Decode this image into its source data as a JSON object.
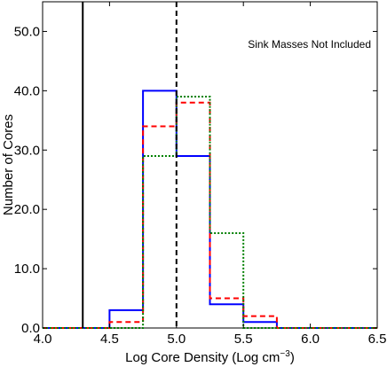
{
  "chart_data": {
    "type": "histogram",
    "title": "",
    "xlabel": "Log Core Density (Log cm",
    "xlabel_sup": "−3",
    "xlabel_close": ")",
    "ylabel": "Number of Cores",
    "xlim": [
      4.0,
      6.5
    ],
    "ylim": [
      0,
      55
    ],
    "x_ticks": [
      4.0,
      4.5,
      5.0,
      5.5,
      6.0,
      6.5
    ],
    "x_tick_labels": [
      "4.0",
      "4.5",
      "5.0",
      "5.5",
      "6.0",
      "6.5"
    ],
    "y_ticks": [
      0,
      10,
      20,
      30,
      40,
      50
    ],
    "y_tick_labels": [
      "0.0",
      "10.0",
      "20.0",
      "30.0",
      "40.0",
      "50.0"
    ],
    "bin_edges": [
      4.0,
      4.25,
      4.5,
      4.75,
      5.0,
      5.25,
      5.5,
      5.75,
      6.0,
      6.25,
      6.5
    ],
    "series": [
      {
        "style": "solid",
        "color": "#0000ff",
        "counts": [
          0,
          0,
          3,
          40,
          29,
          4,
          1,
          0,
          0,
          0
        ]
      },
      {
        "style": "dashed",
        "color": "#ff0000",
        "counts": [
          0,
          0,
          1,
          34,
          38,
          5,
          2,
          0,
          0,
          0
        ]
      },
      {
        "style": "dotted",
        "color": "#008000",
        "counts": [
          0,
          0,
          0,
          29,
          39,
          16,
          0,
          0,
          0,
          0
        ]
      }
    ],
    "vertical_lines": [
      {
        "x": 4.3,
        "style": "solid",
        "color": "#000000"
      },
      {
        "x": 5.0,
        "style": "dashed",
        "color": "#000000"
      }
    ],
    "annotation": "Sink Masses Not Included",
    "annotation_position": "top-right",
    "legend": "none",
    "grid": false
  }
}
